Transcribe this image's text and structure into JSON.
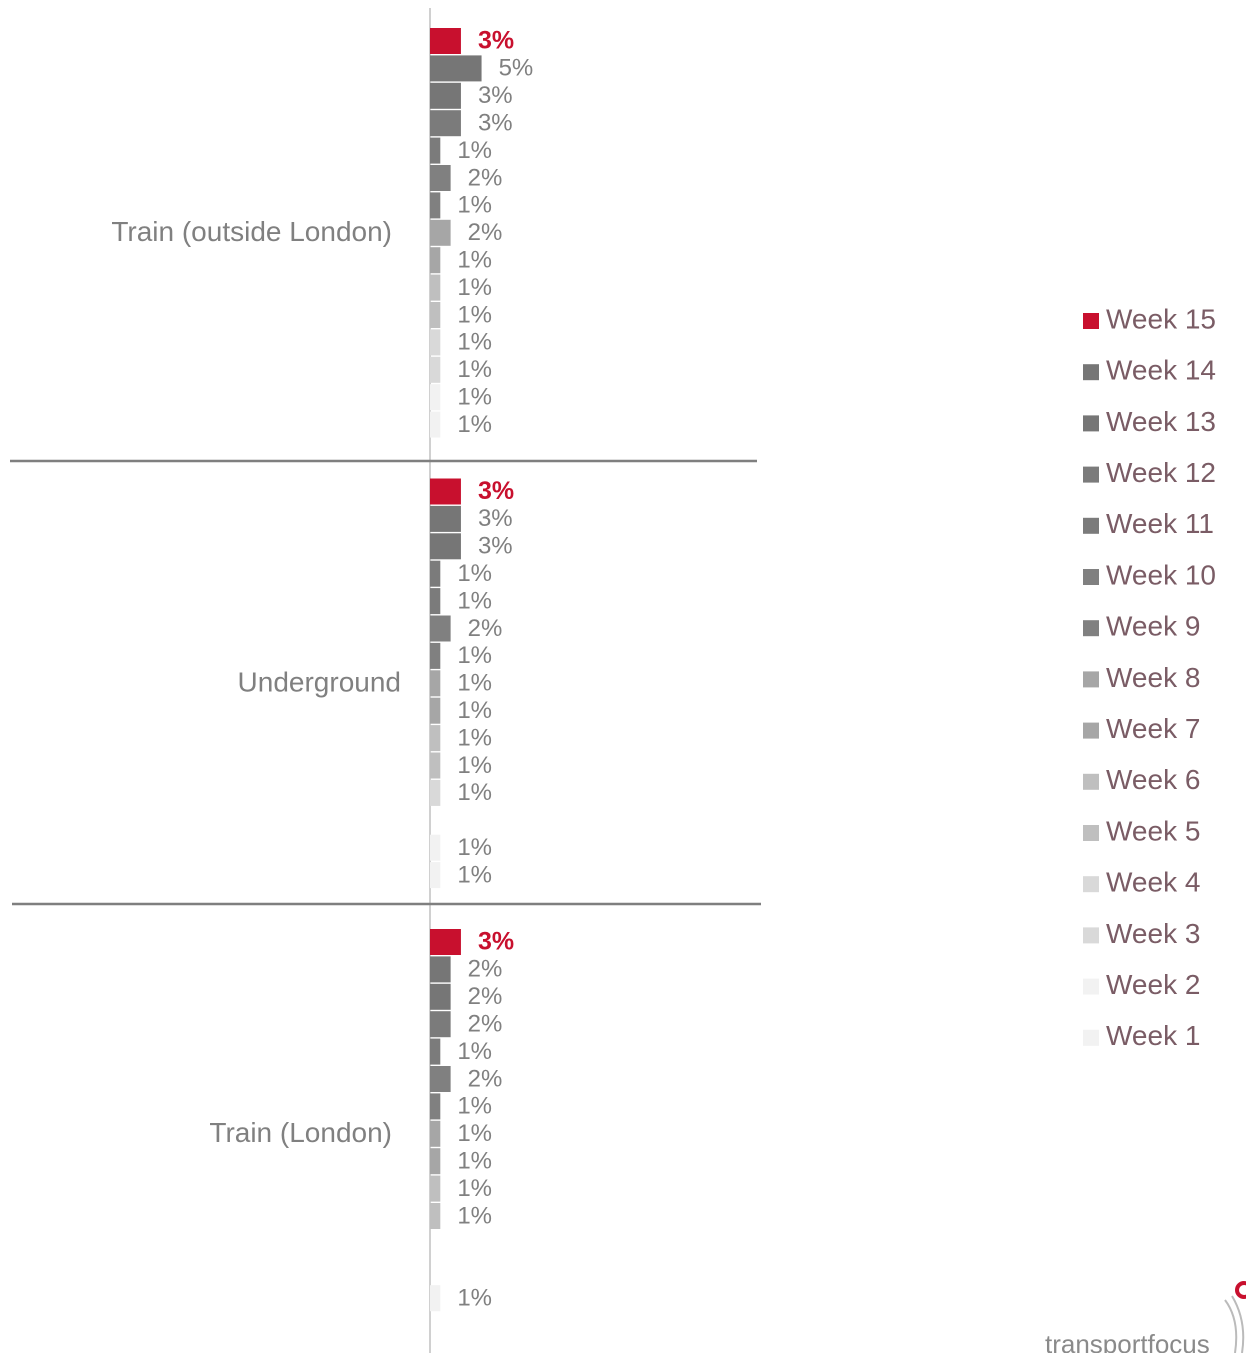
{
  "chart_data": {
    "type": "hbar",
    "categories": [
      "Train (outside London)",
      "Underground",
      "Train (London)"
    ],
    "xlim": [
      0,
      32
    ],
    "series": [
      {
        "name": "Week 15",
        "color": "#c8102e",
        "values": [
          3,
          3,
          3
        ],
        "value_labels": [
          "3%",
          "3%",
          "3%"
        ]
      },
      {
        "name": "Week 14",
        "color": "#767676",
        "values": [
          5,
          3,
          2
        ],
        "value_labels": [
          "5%",
          "3%",
          "2%"
        ]
      },
      {
        "name": "Week 13",
        "color": "#767676",
        "values": [
          3,
          3,
          2
        ],
        "value_labels": [
          "3%",
          "3%",
          "2%"
        ]
      },
      {
        "name": "Week 12",
        "color": "#7b7b7b",
        "values": [
          3,
          1,
          2
        ],
        "value_labels": [
          "3%",
          "1%",
          "2%"
        ]
      },
      {
        "name": "Week 11",
        "color": "#7b7b7b",
        "values": [
          1,
          1,
          1
        ],
        "value_labels": [
          "1%",
          "1%",
          "1%"
        ]
      },
      {
        "name": "Week 10",
        "color": "#808080",
        "values": [
          2,
          2,
          2
        ],
        "value_labels": [
          "2%",
          "2%",
          "2%"
        ]
      },
      {
        "name": "Week 9",
        "color": "#808080",
        "values": [
          1,
          1,
          1
        ],
        "value_labels": [
          "1%",
          "1%",
          "1%"
        ]
      },
      {
        "name": "Week 8",
        "color": "#a6a6a6",
        "values": [
          2,
          1,
          1
        ],
        "value_labels": [
          "2%",
          "1%",
          "1%"
        ]
      },
      {
        "name": "Week 7",
        "color": "#a6a6a6",
        "values": [
          1,
          1,
          1
        ],
        "value_labels": [
          "1%",
          "1%",
          "1%"
        ]
      },
      {
        "name": "Week 6",
        "color": "#bfbfbf",
        "values": [
          1,
          1,
          1
        ],
        "value_labels": [
          "1%",
          "1%",
          "1%"
        ]
      },
      {
        "name": "Week 5",
        "color": "#bfbfbf",
        "values": [
          1,
          1,
          1
        ],
        "value_labels": [
          "1%",
          "1%",
          "1%"
        ]
      },
      {
        "name": "Week 4",
        "color": "#d9d9d9",
        "values": [
          1,
          1,
          null
        ],
        "value_labels": [
          "1%",
          "1%",
          null
        ]
      },
      {
        "name": "Week 3",
        "color": "#d9d9d9",
        "values": [
          1,
          null,
          null
        ],
        "value_labels": [
          "1%",
          null,
          null
        ]
      },
      {
        "name": "Week 2",
        "color": "#f2f2f2",
        "values": [
          1,
          1,
          1
        ],
        "value_labels": [
          "1%",
          "1%",
          "1%"
        ]
      },
      {
        "name": "Week 1",
        "color": "#f2f2f2",
        "values": [
          1,
          1,
          null
        ],
        "value_labels": [
          "1%",
          "1%",
          null
        ]
      }
    ]
  },
  "logo": "transportfocus"
}
